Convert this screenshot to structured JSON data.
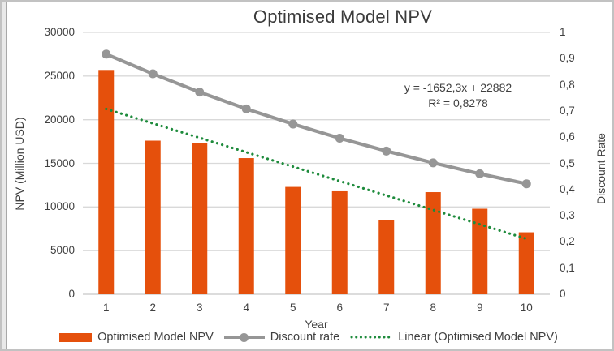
{
  "title": "Optimised Model NPV",
  "annotation": {
    "equation": "y = -1652,3x + 22882",
    "r_squared": "R² = 0,8278"
  },
  "colors": {
    "bar": "#e5500c",
    "line": "#969696",
    "trend": "#1e8b3c",
    "grid": "#d9d9d9",
    "zero_line": "#c6c6c6",
    "text": "#404040"
  },
  "axes": {
    "left": {
      "title": "NPV (Million USD)",
      "ticks": [
        "30000",
        "25000",
        "20000",
        "15000",
        "10000",
        "5000",
        "0"
      ]
    },
    "right": {
      "title": "Discount Rate",
      "ticks": [
        "1",
        "0,9",
        "0,8",
        "0,7",
        "0,6",
        "0,5",
        "0,4",
        "0,3",
        "0,2",
        "0,1",
        "0"
      ]
    },
    "x": {
      "title": "Year",
      "ticks": [
        "1",
        "2",
        "3",
        "4",
        "5",
        "6",
        "7",
        "8",
        "9",
        "10"
      ]
    }
  },
  "legend": [
    {
      "label": "Optimised Model NPV",
      "swatch": "bar"
    },
    {
      "label": "Discount rate",
      "swatch": "line"
    },
    {
      "label": "Linear (Optimised Model NPV)",
      "swatch": "dotted"
    }
  ],
  "chart_data": {
    "type": "bar",
    "title": "Optimised Model NPV",
    "xlabel": "Year",
    "ylabel": "NPV (Million USD)",
    "ylabel_right": "Discount Rate",
    "ylim_left": [
      0,
      30000
    ],
    "ylim_right": [
      0,
      1
    ],
    "grid": true,
    "legend_position": "bottom",
    "categories": [
      1,
      2,
      3,
      4,
      5,
      6,
      7,
      8,
      9,
      10
    ],
    "series": [
      {
        "name": "Optimised Model NPV",
        "type": "bar",
        "axis": "left",
        "values": [
          25700,
          17600,
          17300,
          15600,
          12300,
          11800,
          8500,
          11700,
          9800,
          7100
        ]
      },
      {
        "name": "Discount rate",
        "type": "line",
        "axis": "right",
        "values": [
          0.917,
          0.842,
          0.772,
          0.708,
          0.65,
          0.596,
          0.547,
          0.502,
          0.46,
          0.422
        ]
      },
      {
        "name": "Linear (Optimised Model NPV)",
        "type": "trendline",
        "axis": "left",
        "slope": -1652.3,
        "intercept": 22882,
        "r_squared": 0.8278,
        "x_range": [
          1,
          10
        ]
      }
    ]
  }
}
